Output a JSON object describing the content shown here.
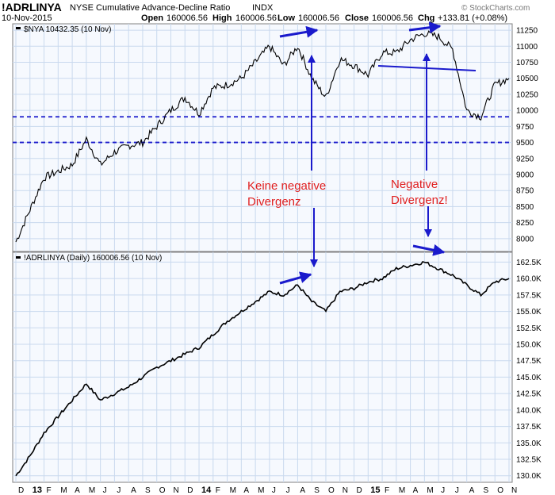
{
  "header": {
    "symbol": "!ADRLINYA",
    "name": "NYSE Cumulative Advance-Decline Ratio",
    "exchange": "INDX",
    "date": "10-Nov-2015",
    "open_label": "Open",
    "open_value": "160006.56",
    "high_label": "High",
    "high_value": "160006.56",
    "low_label": "Low",
    "low_value": "160006.56",
    "close_label": "Close",
    "close_value": "160006.56",
    "chg_label": "Chg",
    "chg_value": "+133.81 (+0.08%)",
    "brand": "© StockCharts.com"
  },
  "top_panel": {
    "legend": "$NYA 10432.35 (10 Nov)",
    "y_ticks": [
      "11250",
      "11000",
      "10750",
      "10500",
      "10250",
      "10000",
      "9750",
      "9500",
      "9250",
      "9000",
      "8750",
      "8500",
      "8250",
      "8000"
    ]
  },
  "bottom_panel": {
    "legend": "!ADRLINYA (Daily) 160006.56 (10 Nov)",
    "y_ticks": [
      "162.5K",
      "160.0K",
      "157.5K",
      "155.0K",
      "152.5K",
      "150.0K",
      "147.5K",
      "145.0K",
      "142.5K",
      "140.0K",
      "137.5K",
      "135.0K",
      "132.5K",
      "130.0K"
    ]
  },
  "x_axis": {
    "labels": [
      "D",
      "13",
      "F",
      "M",
      "A",
      "M",
      "J",
      "J",
      "A",
      "S",
      "O",
      "N",
      "D",
      "14",
      "F",
      "M",
      "A",
      "M",
      "J",
      "J",
      "A",
      "S",
      "O",
      "N",
      "D",
      "15",
      "F",
      "M",
      "A",
      "M",
      "J",
      "J",
      "A",
      "S",
      "O",
      "N"
    ]
  },
  "annotations": {
    "left_line1": "Keine negative",
    "left_line2": "Divergenz",
    "right_line1": "Negative",
    "right_line2": "Divergenz!"
  },
  "colors": {
    "nya_line": "#000000",
    "ad_line": "#000000",
    "annotation_arrow": "#1a1acc",
    "annotation_text": "#e02020",
    "dashed_levels": "#1a1acc",
    "grid": "#c9d9ee"
  },
  "chart_data": [
    {
      "type": "line",
      "title": "$NYA 10432.35 (10 Nov)",
      "ylim": [
        7800,
        11350
      ],
      "horizontal_levels": [
        9900,
        9500
      ],
      "x": [
        "2012-12",
        "2013-01",
        "2013-02",
        "2013-03",
        "2013-04",
        "2013-05",
        "2013-06",
        "2013-07",
        "2013-08",
        "2013-09",
        "2013-10",
        "2013-11",
        "2013-12",
        "2014-01",
        "2014-02",
        "2014-03",
        "2014-04",
        "2014-05",
        "2014-06",
        "2014-07",
        "2014-08",
        "2014-09",
        "2014-10",
        "2014-11",
        "2014-12",
        "2015-01",
        "2015-02",
        "2015-03",
        "2015-04",
        "2015-05",
        "2015-06",
        "2015-07",
        "2015-08",
        "2015-09",
        "2015-10",
        "2015-11"
      ],
      "values": [
        7950,
        8450,
        8950,
        9050,
        9150,
        9550,
        9150,
        9350,
        9450,
        9500,
        9750,
        10000,
        10200,
        9950,
        10350,
        10400,
        10500,
        10750,
        11000,
        10700,
        11000,
        10500,
        10200,
        10800,
        10700,
        10550,
        10900,
        10900,
        11100,
        11200,
        11150,
        10950,
        10000,
        9900,
        10400,
        10500
      ]
    },
    {
      "type": "line",
      "title": "!ADRLINYA (Daily) 160006.56 (10 Nov)",
      "ylim": [
        129000,
        164000
      ],
      "x": [
        "2012-12",
        "2013-01",
        "2013-02",
        "2013-03",
        "2013-04",
        "2013-05",
        "2013-06",
        "2013-07",
        "2013-08",
        "2013-09",
        "2013-10",
        "2013-11",
        "2013-12",
        "2014-01",
        "2014-02",
        "2014-03",
        "2014-04",
        "2014-05",
        "2014-06",
        "2014-07",
        "2014-08",
        "2014-09",
        "2014-10",
        "2014-11",
        "2014-12",
        "2015-01",
        "2015-02",
        "2015-03",
        "2015-04",
        "2015-05",
        "2015-06",
        "2015-07",
        "2015-08",
        "2015-09",
        "2015-10",
        "2015-11"
      ],
      "values": [
        130000,
        133000,
        136500,
        139000,
        141500,
        144000,
        141500,
        142500,
        143500,
        145000,
        146500,
        147500,
        148500,
        149500,
        151500,
        153500,
        155000,
        156500,
        158000,
        157500,
        159000,
        156500,
        155000,
        158000,
        158500,
        159500,
        160000,
        161500,
        162000,
        162500,
        161500,
        160500,
        159000,
        157500,
        159500,
        160000
      ]
    }
  ]
}
